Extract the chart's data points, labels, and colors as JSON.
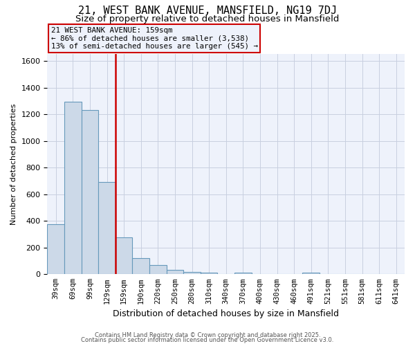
{
  "title": "21, WEST BANK AVENUE, MANSFIELD, NG19 7DJ",
  "subtitle": "Size of property relative to detached houses in Mansfield",
  "xlabel": "Distribution of detached houses by size in Mansfield",
  "ylabel": "Number of detached properties",
  "bar_values": [
    375,
    1295,
    1230,
    690,
    275,
    120,
    70,
    35,
    15,
    10,
    0,
    10,
    0,
    0,
    0,
    10,
    0,
    0,
    0,
    0,
    0
  ],
  "categories": [
    "39sqm",
    "69sqm",
    "99sqm",
    "129sqm",
    "159sqm",
    "190sqm",
    "220sqm",
    "250sqm",
    "280sqm",
    "310sqm",
    "340sqm",
    "370sqm",
    "400sqm",
    "430sqm",
    "460sqm",
    "491sqm",
    "521sqm",
    "551sqm",
    "581sqm",
    "611sqm",
    "641sqm"
  ],
  "bar_color": "#ccd9e8",
  "bar_edge_color": "#6699bb",
  "annotation_box_edge": "#cc0000",
  "vline_color": "#cc0000",
  "vline_x_index": 4,
  "annotation_text_line1": "21 WEST BANK AVENUE: 159sqm",
  "annotation_text_line2": "← 86% of detached houses are smaller (3,538)",
  "annotation_text_line3": "13% of semi-detached houses are larger (545) →",
  "ylim": [
    0,
    1650
  ],
  "yticks": [
    0,
    200,
    400,
    600,
    800,
    1000,
    1200,
    1400,
    1600
  ],
  "footer1": "Contains HM Land Registry data © Crown copyright and database right 2025.",
  "footer2": "Contains public sector information licensed under the Open Government Licence v3.0.",
  "bg_color": "#ffffff",
  "plot_bg_color": "#eef2fb",
  "grid_color": "#c8cfe0",
  "title_fontsize": 11,
  "subtitle_fontsize": 9.5,
  "ylabel_fontsize": 8,
  "xlabel_fontsize": 9
}
